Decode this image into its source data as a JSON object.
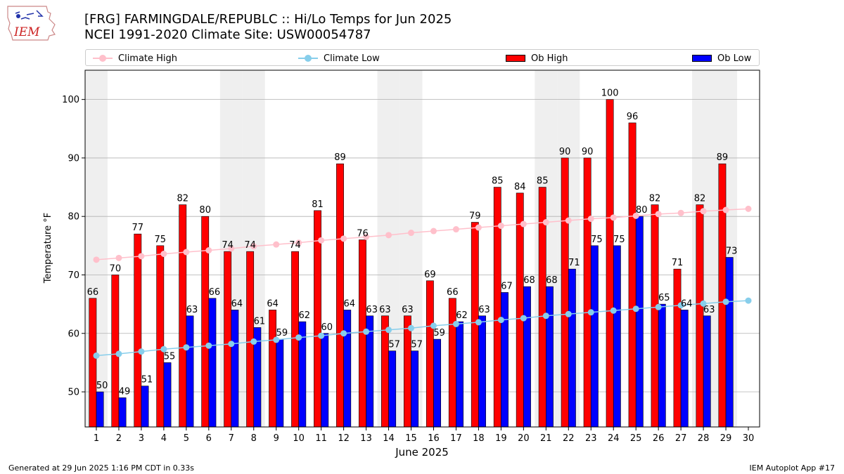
{
  "header": {
    "title_line1": "[FRG] FARMINGDALE/REPUBLC :: Hi/Lo Temps for Jun 2025",
    "title_line2": "NCEI 1991-2020 Climate Site: USW00054787",
    "logo_text": "IEM"
  },
  "legend": {
    "items": [
      {
        "label": "Climate High",
        "kind": "line",
        "color": "#ffc0cb"
      },
      {
        "label": "Climate Low",
        "kind": "line",
        "color": "#87ceeb"
      },
      {
        "label": "Ob High",
        "kind": "bar",
        "color": "#ff0000"
      },
      {
        "label": "Ob Low",
        "kind": "bar",
        "color": "#0000ff"
      }
    ]
  },
  "footer": {
    "left": "Generated at 29 Jun 2025 1:16 PM CDT in 0.33s",
    "right": "IEM Autoplot App #17"
  },
  "chart_data": {
    "type": "bar",
    "xlabel": "June 2025",
    "ylabel": "Temperature °F",
    "ylim": [
      44,
      105
    ],
    "xlim": [
      0.5,
      30.5
    ],
    "yticks": [
      50,
      60,
      70,
      80,
      90,
      100
    ],
    "grid": "horizontal",
    "legend_position": "top",
    "weekend_shading_days": [
      1,
      7,
      8,
      14,
      15,
      21,
      22,
      28,
      29
    ],
    "categories": [
      1,
      2,
      3,
      4,
      5,
      6,
      7,
      8,
      9,
      10,
      11,
      12,
      13,
      14,
      15,
      16,
      17,
      18,
      19,
      20,
      21,
      22,
      23,
      24,
      25,
      26,
      27,
      28,
      29,
      30
    ],
    "series": [
      {
        "name": "Ob High",
        "kind": "bar",
        "color": "#ff0000",
        "values": [
          66,
          70,
          77,
          75,
          82,
          80,
          74,
          74,
          64,
          74,
          81,
          89,
          76,
          63,
          63,
          69,
          66,
          79,
          85,
          84,
          85,
          90,
          90,
          100,
          96,
          82,
          71,
          82,
          89,
          null
        ]
      },
      {
        "name": "Ob Low",
        "kind": "bar",
        "color": "#0000ff",
        "values": [
          50,
          49,
          51,
          55,
          63,
          66,
          64,
          61,
          59,
          62,
          60,
          64,
          63,
          57,
          57,
          59,
          62,
          63,
          67,
          68,
          68,
          71,
          75,
          75,
          80,
          65,
          64,
          63,
          73,
          null
        ]
      },
      {
        "name": "Climate High",
        "kind": "line",
        "color": "#ffc0cb",
        "values": [
          72.6,
          72.9,
          73.2,
          73.6,
          73.9,
          74.2,
          74.5,
          74.9,
          75.2,
          75.5,
          75.9,
          76.2,
          76.5,
          76.8,
          77.2,
          77.5,
          77.8,
          78.1,
          78.4,
          78.7,
          79.0,
          79.3,
          79.6,
          79.8,
          80.1,
          80.4,
          80.6,
          80.9,
          81.1,
          81.3
        ]
      },
      {
        "name": "Climate Low",
        "kind": "line",
        "color": "#87ceeb",
        "values": [
          56.2,
          56.5,
          56.9,
          57.3,
          57.6,
          57.9,
          58.2,
          58.6,
          58.9,
          59.3,
          59.6,
          60.0,
          60.3,
          60.6,
          60.9,
          61.3,
          61.6,
          61.9,
          62.3,
          62.6,
          63.0,
          63.3,
          63.6,
          63.9,
          64.2,
          64.5,
          64.8,
          65.1,
          65.4,
          65.6
        ]
      }
    ]
  }
}
